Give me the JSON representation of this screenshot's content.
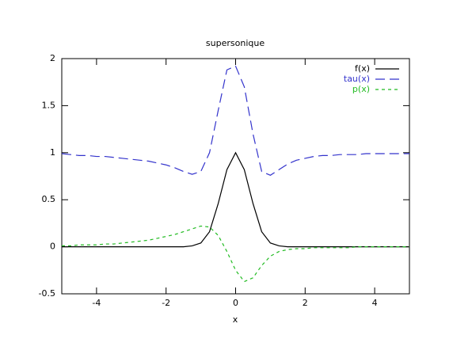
{
  "chart_data": {
    "type": "line",
    "title": "supersonique",
    "x_label": "x",
    "x": [
      -5,
      -4.75,
      -4.5,
      -4.25,
      -4,
      -3.75,
      -3.5,
      -3.25,
      -3,
      -2.75,
      -2.5,
      -2.25,
      -2,
      -1.75,
      -1.5,
      -1.25,
      -1,
      -0.75,
      -0.5,
      -0.25,
      0,
      0.25,
      0.5,
      0.75,
      1,
      1.25,
      1.5,
      1.75,
      2,
      2.25,
      2.5,
      2.75,
      3,
      3.25,
      3.5,
      3.75,
      4,
      4.25,
      4.5,
      4.75,
      5
    ],
    "series": [
      {
        "name": "f(x)",
        "color": "#000000",
        "values": [
          0,
          0,
          0,
          0,
          0,
          0,
          0,
          0,
          0,
          0,
          0,
          0,
          0,
          0,
          0,
          0.01,
          0.04,
          0.16,
          0.46,
          0.82,
          1,
          0.82,
          0.46,
          0.16,
          0.04,
          0.01,
          0,
          0,
          0,
          0,
          0,
          0,
          0,
          0,
          0,
          0,
          0,
          0,
          0,
          0,
          0
        ]
      },
      {
        "name": "tau(x)",
        "color": "#3333cc",
        "values": [
          0.99,
          0.98,
          0.97,
          0.97,
          0.96,
          0.96,
          0.95,
          0.94,
          0.93,
          0.92,
          0.91,
          0.89,
          0.87,
          0.84,
          0.8,
          0.77,
          0.8,
          1.0,
          1.45,
          1.88,
          1.92,
          1.7,
          1.2,
          0.8,
          0.76,
          0.82,
          0.88,
          0.92,
          0.94,
          0.96,
          0.97,
          0.97,
          0.98,
          0.98,
          0.98,
          0.99,
          0.99,
          0.99,
          0.99,
          0.99,
          0.99
        ]
      },
      {
        "name": "p(x)",
        "color": "#22bb22",
        "values": [
          0.01,
          0.01,
          0.02,
          0.02,
          0.02,
          0.03,
          0.03,
          0.04,
          0.05,
          0.06,
          0.07,
          0.09,
          0.11,
          0.13,
          0.16,
          0.19,
          0.22,
          0.21,
          0.12,
          -0.05,
          -0.25,
          -0.37,
          -0.33,
          -0.2,
          -0.1,
          -0.05,
          -0.03,
          -0.02,
          -0.02,
          -0.01,
          -0.01,
          -0.01,
          -0.01,
          -0.01,
          0,
          0,
          0,
          0,
          0,
          0,
          0
        ]
      }
    ],
    "xlim": [
      -5,
      5
    ],
    "xticks": [
      -4,
      -2,
      0,
      2,
      4
    ],
    "ylim": [
      -0.5,
      2
    ],
    "yticks": [
      -0.5,
      0,
      0.5,
      1,
      1.5,
      2
    ],
    "legend": "top-right",
    "grid": false
  }
}
